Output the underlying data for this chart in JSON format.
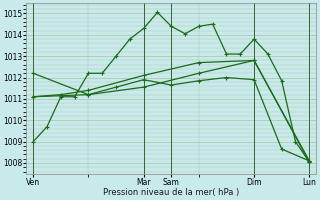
{
  "title": "",
  "xlabel": "Pression niveau de la mer( hPa )",
  "ylabel": "",
  "ylim": [
    1007.5,
    1015.5
  ],
  "yticks": [
    1008,
    1009,
    1010,
    1011,
    1012,
    1013,
    1014,
    1015
  ],
  "day_labels": [
    "Ven",
    "",
    "",
    "",
    "",
    "",
    "",
    "",
    "Mar",
    "Sam",
    "",
    "",
    "",
    "",
    "",
    "",
    "Dim",
    "",
    "",
    "",
    "Lun"
  ],
  "day_vlines": [
    0,
    8,
    10,
    16,
    20
  ],
  "day_tick_labels": [
    "Ven",
    "Mar",
    "Sam",
    "Dim",
    "Lun"
  ],
  "day_tick_pos": [
    0,
    8,
    10,
    16,
    20
  ],
  "background_color": "#c8eaea",
  "grid_color": "#b0c8b0",
  "line_color": "#1a6b1a",
  "vline_color": "#336633",
  "lines": [
    {
      "x": [
        0,
        1,
        2,
        3,
        4,
        5,
        6,
        7,
        8,
        9,
        10,
        11,
        12,
        13,
        14,
        15,
        16,
        17,
        18,
        19,
        20
      ],
      "y": [
        1009.0,
        1009.7,
        1011.1,
        1011.1,
        1012.2,
        1012.2,
        1013.0,
        1013.8,
        1014.3,
        1015.05,
        1014.4,
        1014.05,
        1014.4,
        1014.5,
        1013.1,
        1013.1,
        1013.8,
        1013.1,
        1011.85,
        1009.0,
        1008.05
      ]
    },
    {
      "x": [
        0,
        2,
        4,
        6,
        8,
        10,
        12,
        14,
        16,
        18,
        20
      ],
      "y": [
        1011.1,
        1011.15,
        1011.2,
        1011.55,
        1011.9,
        1011.65,
        1011.85,
        1012.0,
        1011.9,
        1008.65,
        1008.1
      ]
    },
    {
      "x": [
        0,
        2,
        4,
        8,
        12,
        16,
        20
      ],
      "y": [
        1011.1,
        1011.2,
        1011.4,
        1012.1,
        1012.7,
        1012.8,
        1008.05
      ]
    },
    {
      "x": [
        0,
        4,
        8,
        12,
        16,
        20
      ],
      "y": [
        1012.2,
        1011.2,
        1011.55,
        1012.2,
        1012.8,
        1008.1
      ]
    }
  ]
}
